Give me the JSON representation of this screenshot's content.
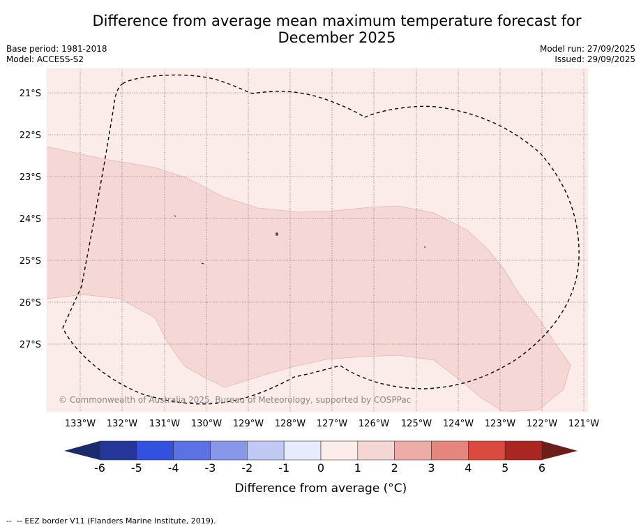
{
  "title": {
    "line1": "Difference from average mean maximum temperature forecast for",
    "line2": "December 2025"
  },
  "meta": {
    "base_period": "Base period: 1981-2018",
    "model": "Model: ACCESS-S2",
    "model_run": "Model run: 27/09/2025",
    "issued": "Issued: 29/09/2025"
  },
  "map": {
    "lat_labels": [
      "21°S",
      "22°S",
      "23°S",
      "24°S",
      "25°S",
      "26°S",
      "27°S"
    ],
    "lon_labels": [
      "133°W",
      "132°W",
      "131°W",
      "130°W",
      "129°W",
      "128°W",
      "127°W",
      "126°W",
      "125°W",
      "124°W",
      "123°W",
      "122°W",
      "121°W"
    ],
    "copyright": "© Commonwealth of Australia 2025, Bureau of Meteorology, supported by COSPPac",
    "background_color": "#fbecea",
    "anomaly_color": "#f5d7d6"
  },
  "colorbar": {
    "ticks": [
      "-6",
      "-5",
      "-4",
      "-3",
      "-2",
      "-1",
      "0",
      "1",
      "2",
      "3",
      "4",
      "5",
      "6"
    ],
    "colors": [
      "#253699",
      "#3151de",
      "#5a72e3",
      "#8797ea",
      "#c0c9f3",
      "#e7ebfb",
      "#fcecea",
      "#f4d6d5",
      "#edaca8",
      "#e5857e",
      "#da4a3f",
      "#aa2620"
    ],
    "under_color": "#1c2a6e",
    "over_color": "#6e1d18",
    "label": "Difference from average (°C)"
  },
  "footer": {
    "legend_text": "-- EEZ border V11 (Flanders Marine Institute, 2019)."
  }
}
